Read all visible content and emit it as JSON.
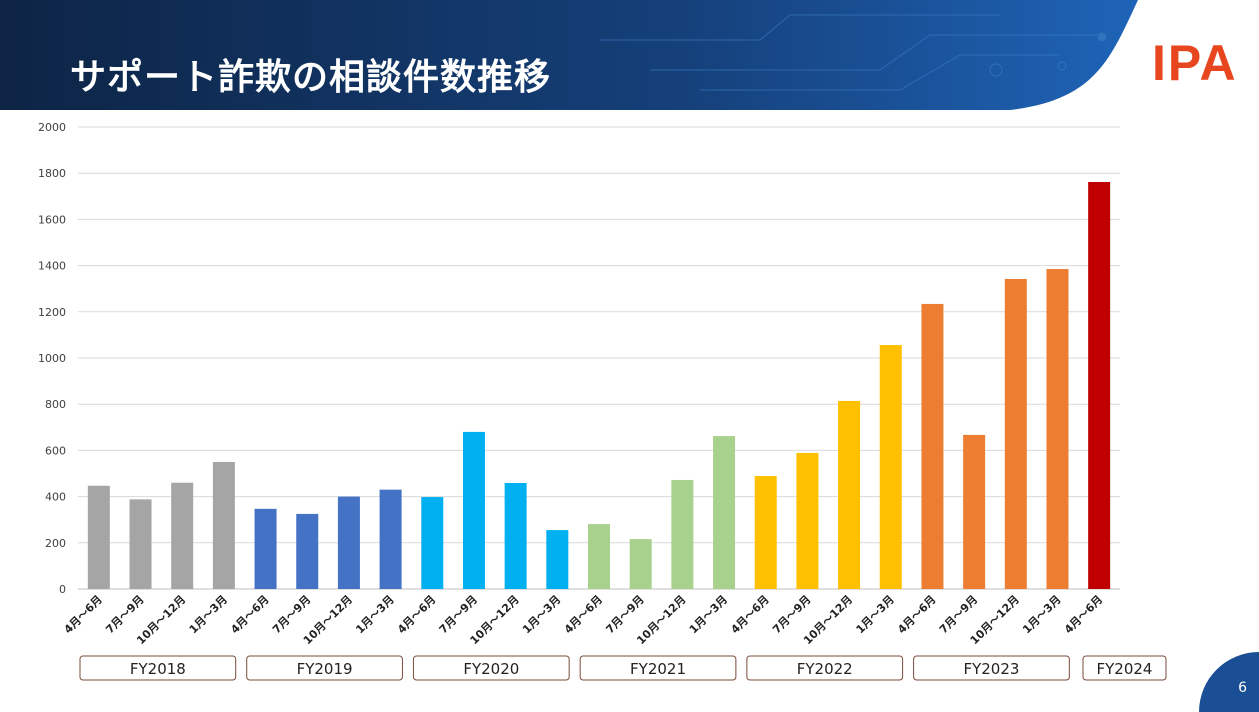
{
  "header": {
    "title": "サポート詐欺の相談件数推移",
    "logo": "IPA"
  },
  "page_number": "6",
  "chart_data": {
    "type": "bar",
    "title": "",
    "xlabel": "",
    "ylabel": "",
    "ylim": [
      0,
      2000
    ],
    "yticks": [
      0,
      200,
      400,
      600,
      800,
      1000,
      1200,
      1400,
      1600,
      1800,
      2000
    ],
    "grid": true,
    "categories": [
      "4月～6月",
      "7月～9月",
      "10月～12月",
      "1月～3月",
      "4月～6月",
      "7月～9月",
      "10月～12月",
      "1月～3月",
      "4月～6月",
      "7月～9月",
      "10月～12月",
      "1月～3月",
      "4月～6月",
      "7月～9月",
      "10月～12月",
      "1月～3月",
      "4月～6月",
      "7月～9月",
      "10月～12月",
      "1月～3月",
      "4月～6月",
      "7月～9月",
      "10月～12月",
      "1月～3月",
      "4月～6月"
    ],
    "values": [
      447,
      388,
      460,
      550,
      347,
      325,
      400,
      430,
      398,
      680,
      459,
      255,
      281,
      216,
      472,
      662,
      489,
      589,
      814,
      1056,
      1234,
      667,
      1342,
      1385,
      1762
    ],
    "groups": [
      {
        "label": "FY2018",
        "count": 4,
        "color": "#a5a5a5"
      },
      {
        "label": "FY2019",
        "count": 4,
        "color": "#4472c4"
      },
      {
        "label": "FY2020",
        "count": 4,
        "color": "#00b0f0"
      },
      {
        "label": "FY2021",
        "count": 4,
        "color": "#a9d18e"
      },
      {
        "label": "FY2022",
        "count": 4,
        "color": "#ffc000"
      },
      {
        "label": "FY2023",
        "count": 4,
        "color": "#ed7d31"
      },
      {
        "label": "FY2024",
        "count": 1,
        "color": "#c00000"
      }
    ]
  }
}
